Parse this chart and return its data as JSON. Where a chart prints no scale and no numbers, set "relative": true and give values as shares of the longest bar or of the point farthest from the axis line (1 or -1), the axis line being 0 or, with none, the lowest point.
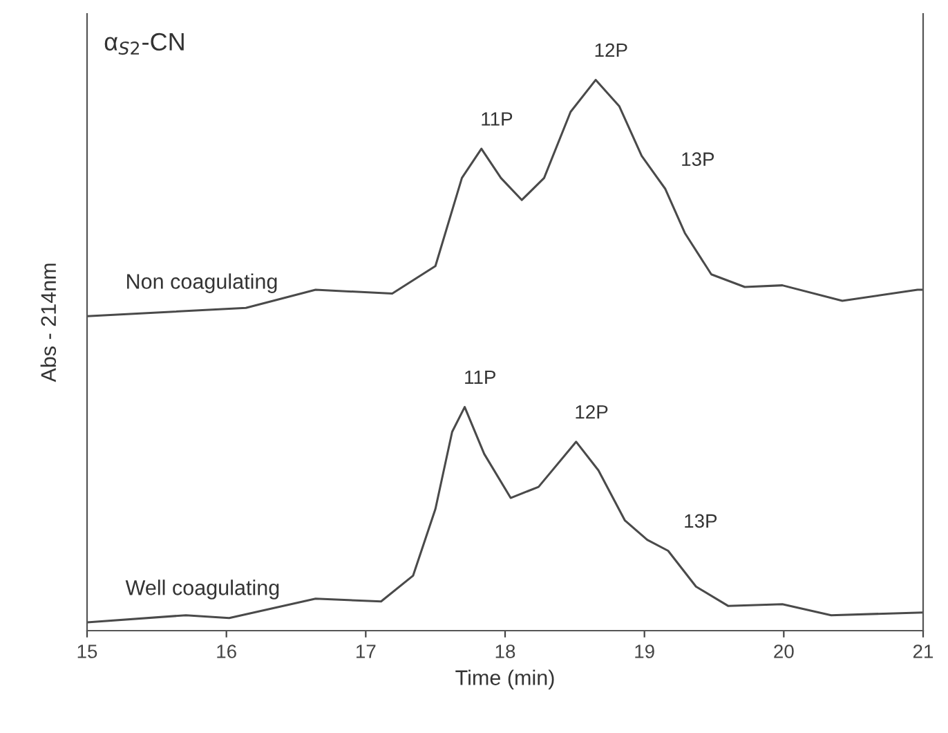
{
  "chart_data": {
    "type": "line",
    "title": "α$_{S2}$-CN",
    "xlabel": "Time (min)",
    "ylabel": "Abs - 214nm",
    "relative": true,
    "xlim": [
      15,
      21
    ],
    "xticks": [
      15,
      16,
      17,
      18,
      19,
      20,
      21
    ],
    "grid": false,
    "legend": false,
    "marker": "none",
    "line_style": "solid",
    "series": [
      {
        "name": "Non coagulating",
        "color": "#4a4a4a",
        "x": [
          15.0,
          16.14,
          16.64,
          17.19,
          17.5,
          17.69,
          17.83,
          17.97,
          18.12,
          18.28,
          18.47,
          18.65,
          18.82,
          18.98,
          19.15,
          19.29,
          19.48,
          19.72,
          19.99,
          20.42,
          20.96,
          21.0
        ],
        "values": [
          0.571,
          0.586,
          0.619,
          0.612,
          0.662,
          0.822,
          0.875,
          0.822,
          0.782,
          0.822,
          0.942,
          1.0,
          0.952,
          0.862,
          0.802,
          0.722,
          0.647,
          0.624,
          0.627,
          0.599,
          0.619,
          0.619
        ]
      },
      {
        "name": "Well coagulating",
        "color": "#4a4a4a",
        "x": [
          15.0,
          15.71,
          16.02,
          16.64,
          17.11,
          17.34,
          17.5,
          17.62,
          17.71,
          17.85,
          18.04,
          18.24,
          18.51,
          18.67,
          18.86,
          19.02,
          19.17,
          19.37,
          19.6,
          19.99,
          20.34,
          21.0
        ],
        "values": [
          0.015,
          0.028,
          0.023,
          0.058,
          0.053,
          0.1,
          0.221,
          0.361,
          0.406,
          0.321,
          0.241,
          0.261,
          0.343,
          0.291,
          0.2,
          0.165,
          0.145,
          0.08,
          0.045,
          0.048,
          0.028,
          0.033
        ]
      }
    ],
    "annotations": [
      {
        "text": "11P",
        "x": 17.83,
        "y": 0.875
      },
      {
        "text": "12P",
        "x": 18.65,
        "y": 1.0
      },
      {
        "text": "13P",
        "x": 19.15,
        "y": 0.802
      },
      {
        "text": "11P",
        "x": 17.71,
        "y": 0.406
      },
      {
        "text": "12P",
        "x": 18.51,
        "y": 0.343
      },
      {
        "text": "13P",
        "x": 19.17,
        "y": 0.145
      }
    ]
  }
}
